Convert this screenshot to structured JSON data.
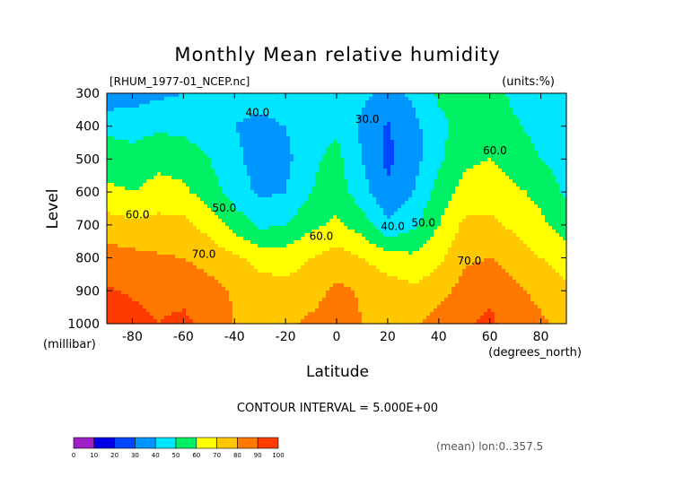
{
  "chart_data": {
    "type": "heatmap",
    "title": "Monthly Mean relative humidity",
    "file_label": "[RHUM_1977-01_NCEP.nc]",
    "units_label": "(units:%)",
    "ylabel": "Level",
    "yunit_label": "(millibar)",
    "xlabel": "Latitude",
    "xunit_label": "(degrees_north)",
    "xlim": [
      -90,
      90
    ],
    "ylim": [
      1000,
      300
    ],
    "x_ticks": [
      -80,
      -60,
      -40,
      -20,
      0,
      20,
      40,
      60,
      80
    ],
    "x_tick_labels": [
      "-80",
      "-60",
      "-40",
      "-20",
      "0",
      "20",
      "40",
      "60",
      "80"
    ],
    "y_ticks": [
      300,
      400,
      500,
      600,
      700,
      800,
      900,
      1000
    ],
    "y_tick_labels": [
      "300",
      "400",
      "500",
      "600",
      "700",
      "800",
      "900",
      "1000"
    ],
    "contour_interval_label": "CONTOUR INTERVAL = 5.000E+00",
    "mean_label": "(mean) lon:0..357.5",
    "contour_labels": [
      {
        "text": "40.0",
        "lat": -31,
        "level": 370
      },
      {
        "text": "30.0",
        "lat": 12,
        "level": 390
      },
      {
        "text": "60.0",
        "lat": -78,
        "level": 680
      },
      {
        "text": "50.0",
        "lat": -44,
        "level": 660
      },
      {
        "text": "60.0",
        "lat": -6,
        "level": 745
      },
      {
        "text": "40.0",
        "lat": 22,
        "level": 715
      },
      {
        "text": "50.0",
        "lat": 34,
        "level": 705
      },
      {
        "text": "60.0",
        "lat": 62,
        "level": 485
      },
      {
        "text": "70.0",
        "lat": -52,
        "level": 800
      },
      {
        "text": "70.0",
        "lat": 52,
        "level": 820
      }
    ],
    "levels": [
      1000,
      900,
      800,
      700,
      600,
      500,
      400,
      300
    ],
    "lats": [
      -90,
      -80,
      -70,
      -60,
      -50,
      -40,
      -30,
      -20,
      -10,
      0,
      10,
      20,
      30,
      40,
      50,
      60,
      70,
      80,
      90
    ],
    "values": [
      [
        94,
        93,
        90,
        93,
        85,
        80,
        78,
        78,
        82,
        85,
        80,
        79,
        78,
        85,
        89,
        92,
        85,
        82,
        75
      ],
      [
        91,
        89,
        87,
        86,
        83,
        79,
        75,
        74,
        76,
        82,
        79,
        76,
        72,
        76,
        84,
        88,
        82,
        77,
        72
      ],
      [
        84,
        83,
        81,
        80,
        77,
        72,
        66,
        65,
        70,
        75,
        70,
        64,
        62,
        68,
        78,
        80,
        76,
        70,
        65
      ],
      [
        75,
        72,
        74,
        73,
        66,
        56,
        48,
        50,
        58,
        62,
        55,
        42,
        48,
        60,
        72,
        72,
        68,
        62,
        55
      ],
      [
        62,
        60,
        63,
        62,
        55,
        45,
        38,
        40,
        50,
        55,
        44,
        31,
        40,
        54,
        64,
        66,
        62,
        57,
        48
      ],
      [
        55,
        54,
        58,
        56,
        50,
        42,
        36,
        37,
        48,
        53,
        40,
        28,
        36,
        48,
        58,
        60,
        55,
        50,
        45
      ],
      [
        48,
        46,
        48,
        47,
        44,
        40,
        38,
        40,
        47,
        48,
        38,
        29,
        37,
        47,
        55,
        55,
        51,
        47,
        42
      ],
      [
        32,
        35,
        38,
        40,
        44,
        43,
        43,
        45,
        50,
        48,
        42,
        37,
        42,
        52,
        55,
        53,
        48,
        44,
        40
      ]
    ],
    "colorbar": {
      "ticks": [
        "0",
        "10",
        "20",
        "30",
        "40",
        "50",
        "60",
        "70",
        "80",
        "90",
        "100"
      ],
      "colors": [
        "#a020c8",
        "#0000e6",
        "#0046ff",
        "#0096ff",
        "#00e6ff",
        "#00f064",
        "#ffff00",
        "#ffc800",
        "#ff7800",
        "#ff3c00"
      ]
    },
    "fill_colors": [
      "#a020c8",
      "#0000e6",
      "#0046ff",
      "#0096ff",
      "#00e6ff",
      "#00f064",
      "#ffff00",
      "#ffc800",
      "#ff7800",
      "#ff3c00",
      "#ff0000"
    ]
  }
}
